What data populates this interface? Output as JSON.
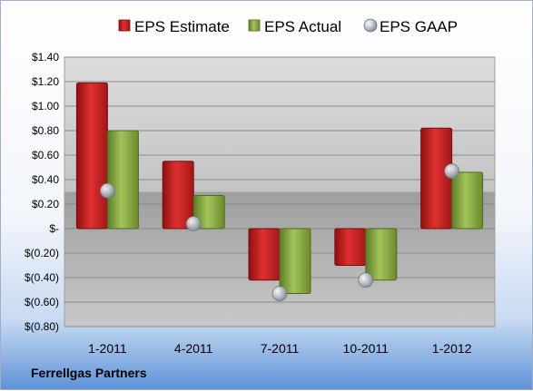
{
  "chart_data": {
    "type": "bar",
    "categories": [
      "1-2011",
      "4-2011",
      "7-2011",
      "10-2011",
      "1-2012"
    ],
    "series": [
      {
        "name": "EPS Estimate",
        "kind": "bar",
        "color": "#cc2222",
        "values": [
          1.19,
          0.55,
          -0.42,
          -0.3,
          0.82
        ]
      },
      {
        "name": "EPS Actual",
        "kind": "bar",
        "color": "#86a842",
        "values": [
          0.8,
          0.27,
          -0.53,
          -0.42,
          0.46
        ]
      },
      {
        "name": "EPS GAAP",
        "kind": "marker",
        "color": "#aab4c2",
        "values": [
          0.31,
          0.04,
          -0.53,
          -0.42,
          0.47
        ]
      }
    ],
    "ylim": [
      -0.8,
      1.4
    ],
    "yticks": [
      1.4,
      1.2,
      1.0,
      0.8,
      0.6,
      0.4,
      0.2,
      0,
      -0.2,
      -0.4,
      -0.6,
      -0.8
    ],
    "ytick_labels": [
      "$1.40",
      "$1.20",
      "$1.00",
      "$0.80",
      "$0.60",
      "$0.40",
      "$0.20",
      "$-",
      "$(0.20)",
      "$(0.40)",
      "$(0.60)",
      "$(0.80)"
    ],
    "grid": true,
    "legend_position": "top"
  },
  "footer": {
    "company": "Ferrellgas Partners"
  }
}
